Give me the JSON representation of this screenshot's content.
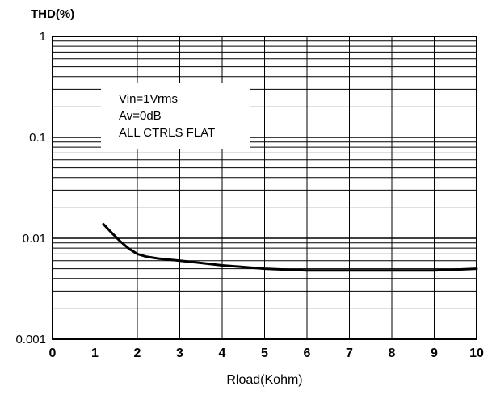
{
  "chart_data": {
    "type": "line",
    "title": "",
    "ylabel": "THD(%)",
    "xlabel": "Rload(Kohm)",
    "x_ticks": [
      "0",
      "1",
      "2",
      "3",
      "4",
      "5",
      "6",
      "7",
      "8",
      "9",
      "10"
    ],
    "y_ticks": [
      "1",
      "0.1",
      "0.01",
      "0.001"
    ],
    "xlim": [
      0,
      10
    ],
    "ylim": [
      0.001,
      1
    ],
    "y_scale": "log",
    "grid": true,
    "annotation": [
      "Vin=1Vrms",
      "Av=0dB",
      "ALL CTRLS FLAT"
    ],
    "series": [
      {
        "x": [
          1.2,
          1.4,
          1.6,
          1.8,
          2.0,
          2.2,
          2.5,
          3.0,
          3.5,
          4.0,
          4.5,
          5.0,
          5.5,
          6.0,
          6.5,
          7.0,
          7.5,
          8.0,
          8.5,
          9.0,
          9.5,
          10.0
        ],
        "y": [
          0.0138,
          0.0113,
          0.0093,
          0.0079,
          0.007,
          0.0066,
          0.0063,
          0.006,
          0.0057,
          0.0054,
          0.0052,
          0.005,
          0.0049,
          0.0048,
          0.0048,
          0.0048,
          0.0048,
          0.0048,
          0.0048,
          0.0048,
          0.0049,
          0.005
        ]
      }
    ],
    "colors": {
      "line": "#000000",
      "grid": "#000000",
      "background": "#ffffff"
    }
  }
}
